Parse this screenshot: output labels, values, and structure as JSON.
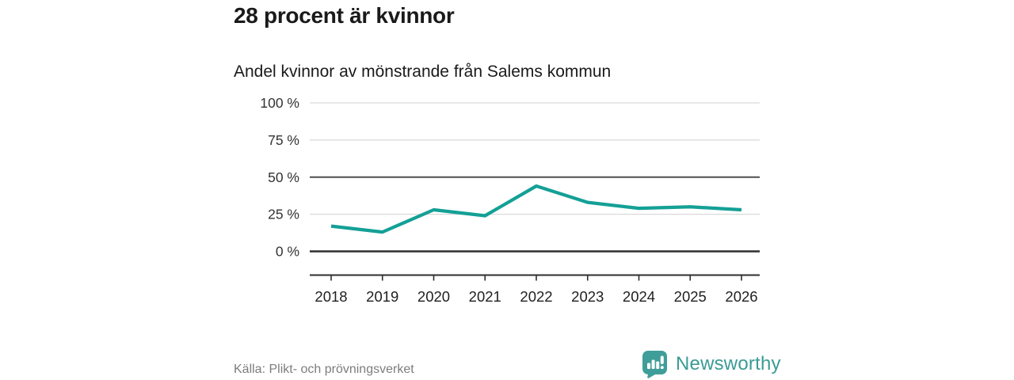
{
  "chart": {
    "title": "28 procent är kvinnor",
    "subtitle": "Andel kvinnor av mönstrande från Salems kommun"
  },
  "chart_data": {
    "type": "line",
    "title": "28 procent är kvinnor",
    "subtitle": "Andel kvinnor av mönstrande från Salems kommun",
    "categories": [
      "2018",
      "2019",
      "2020",
      "2021",
      "2022",
      "2023",
      "2024",
      "2025",
      "2026"
    ],
    "values": [
      17,
      13,
      28,
      24,
      44,
      33,
      29,
      30,
      28
    ],
    "xlabel": "",
    "ylabel": "",
    "ylim": [
      0,
      100
    ],
    "yticks": [
      0,
      25,
      50,
      75,
      100
    ],
    "ytick_suffix": " %",
    "emphasized_gridline": 50,
    "baseline_gridline": 0,
    "grid": true,
    "legend": "none",
    "line_color": "#14a096"
  },
  "footer": {
    "source": "Källa: Plikt- och prövningsverket",
    "brand": "Newsworthy"
  },
  "icons": {
    "brand_icon": "newsworthy-speech-bubble-bar-chart-exclamation"
  },
  "colors": {
    "line": "#14a096",
    "grid_light": "#d9d9d9",
    "grid_mid": "#4f4f4f",
    "axis_dark": "#2e2e2e",
    "title": "#1a1a1a",
    "tick_label": "#333333",
    "source": "#7d7d7d",
    "brand": "#3f9e99"
  }
}
